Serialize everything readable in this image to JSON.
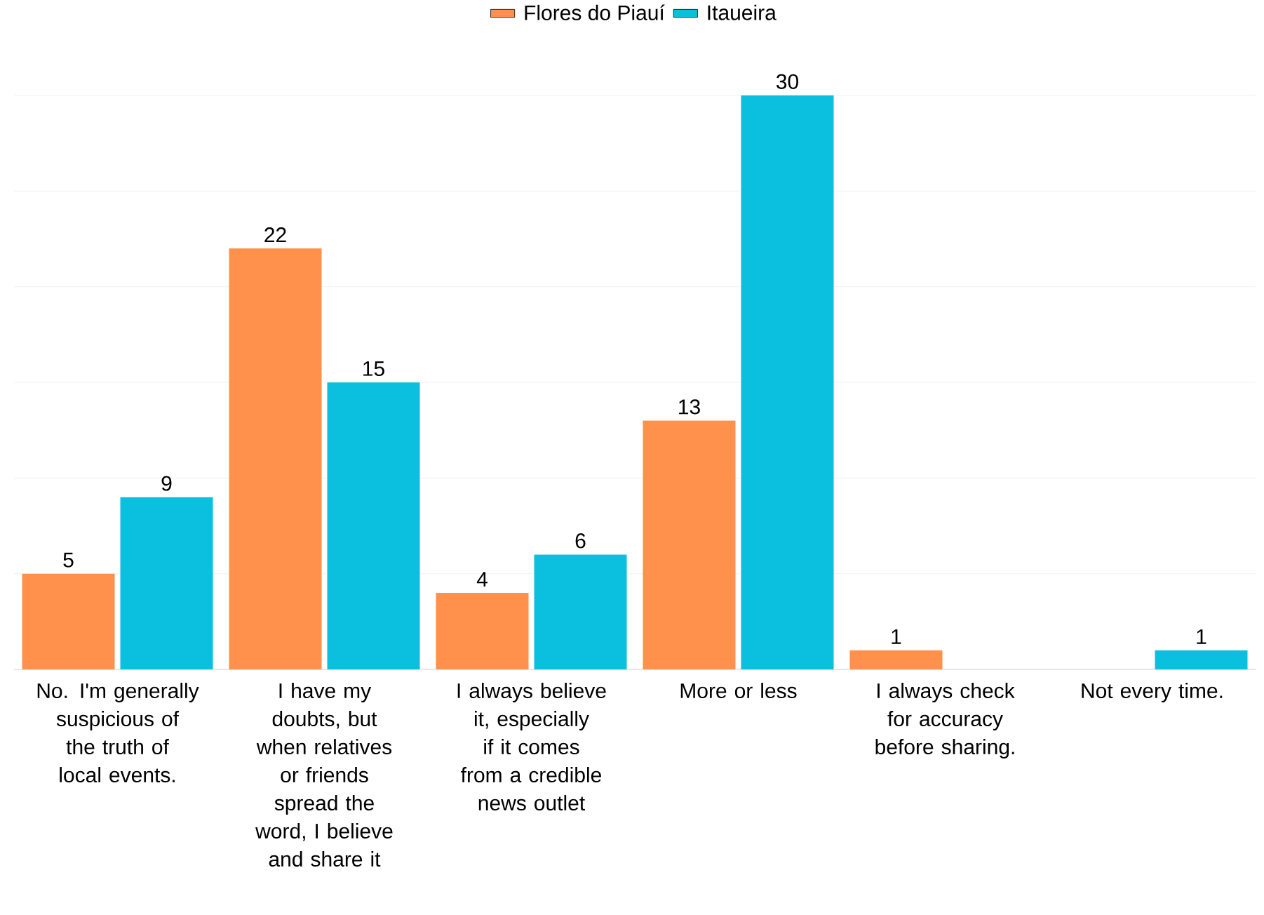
{
  "chart_data": {
    "type": "bar",
    "categories": [
      "No. I'm generally suspicious of the truth of local events.",
      "I have my doubts, but when relatives or friends spread the word, I believe and share it",
      "I always believe it, especially if it comes from a credible news outlet",
      "More or less",
      "I always check for accuracy before sharing.",
      "Not every time."
    ],
    "series": [
      {
        "name": "Flores do Piauí",
        "color": "#ff914d",
        "values": [
          5,
          22,
          4,
          13,
          1,
          0
        ],
        "value_labels": [
          "5",
          "22",
          "4",
          "13",
          "1",
          null
        ]
      },
      {
        "name": "Itaueira",
        "color": "#0bc0df",
        "values": [
          9,
          15,
          6,
          30,
          0,
          1
        ],
        "value_labels": [
          "9",
          "15",
          "6",
          "30",
          null,
          "1"
        ]
      }
    ],
    "ylim": [
      0,
      30
    ],
    "yticks": [
      {
        "value": 0,
        "label": null
      },
      {
        "value": 5,
        "label": null
      },
      {
        "value": 10,
        "label": null
      },
      {
        "value": 15,
        "label": null
      },
      {
        "value": 20,
        "label": null
      },
      {
        "value": 25,
        "label": null
      },
      {
        "value": 30,
        "label": null
      }
    ],
    "tick_labels": "x",
    "grid": "y",
    "legend": "top"
  }
}
